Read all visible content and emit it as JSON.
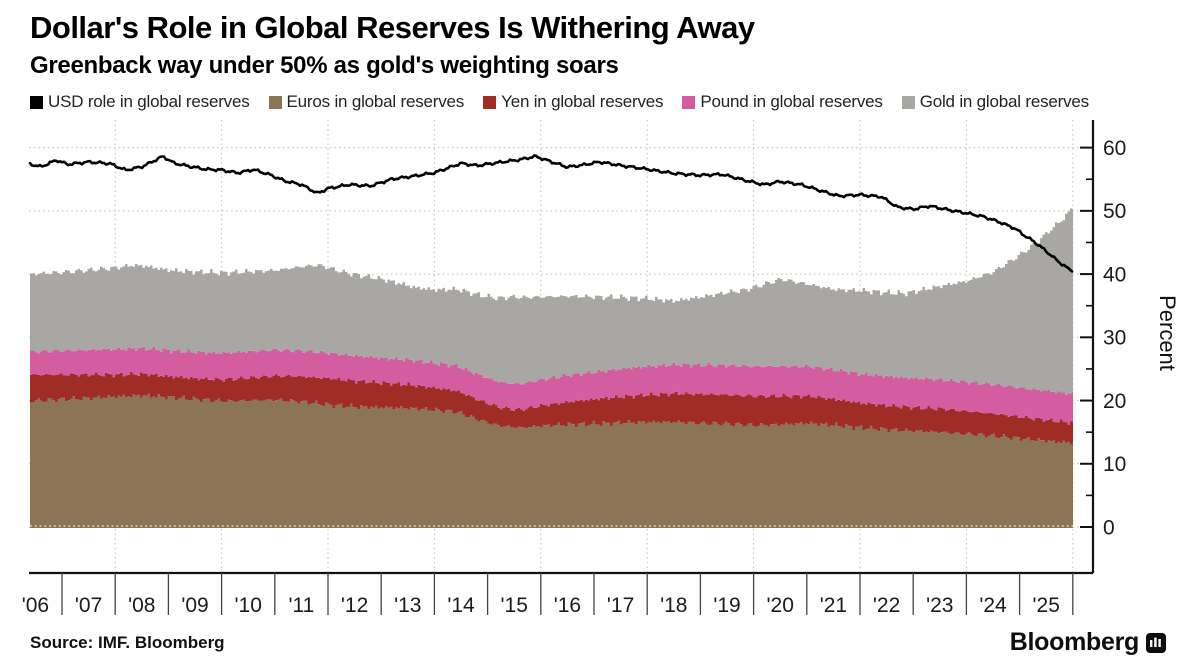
{
  "header": {
    "title": "Dollar's Role in Global Reserves Is Withering Away",
    "subtitle": "Greenback way under 50% as gold's weighting soars"
  },
  "legend": [
    {
      "key": "usd",
      "label": "USD role in global reserves"
    },
    {
      "key": "euros",
      "label": "Euros in global reserves"
    },
    {
      "key": "yen",
      "label": "Yen in global reserves"
    },
    {
      "key": "pound",
      "label": "Pound in global reserves"
    },
    {
      "key": "gold",
      "label": "Gold in global reserves"
    }
  ],
  "colors": {
    "usd": "#000000",
    "euros": "#8b7556",
    "yen": "#9f2d26",
    "pound": "#d45ca0",
    "gold": "#a8a7a3",
    "grid": "#bfbfbf",
    "axis": "#111111",
    "tick_text": "#1b1b1b"
  },
  "footer": {
    "source": "Source: IMF. Bloomberg",
    "brand": "Bloomberg"
  },
  "chart_data": {
    "type": "area",
    "title": "Dollar's Role in Global Reserves Is Withering Away",
    "subtitle": "Greenback way under 50% as gold's weighting soars",
    "ylabel": "Percent",
    "xlabel": "",
    "grid": "dotted",
    "legend_position": "top",
    "y_range": [
      0,
      62
    ],
    "ytick_values": [
      0,
      10,
      20,
      30,
      40,
      50,
      60
    ],
    "ytick_labels": [
      "0",
      "10",
      "20",
      "30",
      "40",
      "50",
      "60"
    ],
    "yminor_values": [
      5,
      15,
      25,
      35,
      45,
      55
    ],
    "x_range": [
      2006.4,
      2026.0
    ],
    "xtick_labels": [
      "'06",
      "'07",
      "'08",
      "'09",
      "'10",
      "'11",
      "'12",
      "'13",
      "'14",
      "'15",
      "'16",
      "'17",
      "'18",
      "'19",
      "'20",
      "'21",
      "'22",
      "'23",
      "'24",
      "'25"
    ],
    "stack_order": [
      "euros",
      "yen",
      "pound",
      "gold"
    ],
    "series": [
      {
        "key": "euros",
        "name": "Euros in global reserves",
        "type": "area",
        "points": [
          [
            2006.4,
            19.9
          ],
          [
            2007.0,
            20.2
          ],
          [
            2007.5,
            20.4
          ],
          [
            2008.0,
            20.6
          ],
          [
            2008.5,
            20.8
          ],
          [
            2009.0,
            20.5
          ],
          [
            2009.5,
            20.2
          ],
          [
            2010.0,
            19.9
          ],
          [
            2010.5,
            20.0
          ],
          [
            2011.0,
            20.1
          ],
          [
            2011.5,
            19.8
          ],
          [
            2012.0,
            19.3
          ],
          [
            2012.5,
            19.0
          ],
          [
            2013.0,
            18.9
          ],
          [
            2013.5,
            18.8
          ],
          [
            2014.0,
            18.5
          ],
          [
            2014.4,
            18.2
          ],
          [
            2014.8,
            17.0
          ],
          [
            2015.2,
            16.0
          ],
          [
            2015.6,
            15.7
          ],
          [
            2016.0,
            16.0
          ],
          [
            2016.5,
            16.2
          ],
          [
            2017.0,
            16.3
          ],
          [
            2017.5,
            16.5
          ],
          [
            2018.0,
            16.6
          ],
          [
            2018.5,
            16.6
          ],
          [
            2019.0,
            16.4
          ],
          [
            2019.5,
            16.3
          ],
          [
            2020.0,
            16.1
          ],
          [
            2020.5,
            16.2
          ],
          [
            2021.0,
            16.4
          ],
          [
            2021.5,
            16.1
          ],
          [
            2022.0,
            15.7
          ],
          [
            2022.5,
            15.4
          ],
          [
            2023.0,
            15.2
          ],
          [
            2023.5,
            15.0
          ],
          [
            2024.0,
            14.7
          ],
          [
            2024.5,
            14.4
          ],
          [
            2025.0,
            14.0
          ],
          [
            2025.5,
            13.6
          ],
          [
            2025.95,
            13.3
          ]
        ]
      },
      {
        "key": "yen",
        "name": "Yen in global reserves",
        "type": "area",
        "points": [
          [
            2006.4,
            4.2
          ],
          [
            2007.0,
            3.9
          ],
          [
            2007.5,
            3.7
          ],
          [
            2008.0,
            3.5
          ],
          [
            2008.5,
            3.4
          ],
          [
            2009.0,
            3.3
          ],
          [
            2009.5,
            3.3
          ],
          [
            2010.0,
            3.4
          ],
          [
            2010.5,
            3.6
          ],
          [
            2011.0,
            3.8
          ],
          [
            2011.5,
            4.0
          ],
          [
            2012.0,
            4.2
          ],
          [
            2012.5,
            4.1
          ],
          [
            2013.0,
            3.9
          ],
          [
            2013.5,
            3.7
          ],
          [
            2014.0,
            3.5
          ],
          [
            2014.5,
            3.3
          ],
          [
            2015.0,
            3.0
          ],
          [
            2015.5,
            2.8
          ],
          [
            2016.0,
            3.2
          ],
          [
            2016.5,
            3.6
          ],
          [
            2017.0,
            3.9
          ],
          [
            2017.5,
            4.1
          ],
          [
            2018.0,
            4.3
          ],
          [
            2018.5,
            4.5
          ],
          [
            2019.0,
            4.6
          ],
          [
            2019.5,
            4.6
          ],
          [
            2020.0,
            4.6
          ],
          [
            2020.5,
            4.5
          ],
          [
            2021.0,
            4.3
          ],
          [
            2021.5,
            4.1
          ],
          [
            2022.0,
            3.9
          ],
          [
            2022.5,
            3.8
          ],
          [
            2023.0,
            3.7
          ],
          [
            2023.5,
            3.7
          ],
          [
            2024.0,
            3.6
          ],
          [
            2024.5,
            3.5
          ],
          [
            2025.0,
            3.4
          ],
          [
            2025.5,
            3.3
          ],
          [
            2025.95,
            3.2
          ]
        ]
      },
      {
        "key": "pound",
        "name": "Pound in global reserves",
        "type": "area",
        "points": [
          [
            2006.4,
            3.6
          ],
          [
            2007.0,
            3.8
          ],
          [
            2008.0,
            4.0
          ],
          [
            2009.0,
            4.1
          ],
          [
            2010.0,
            4.2
          ],
          [
            2011.0,
            4.1
          ],
          [
            2012.0,
            4.0
          ],
          [
            2013.0,
            3.9
          ],
          [
            2014.0,
            3.9
          ],
          [
            2015.0,
            4.0
          ],
          [
            2016.0,
            4.1
          ],
          [
            2017.0,
            4.3
          ],
          [
            2018.0,
            4.5
          ],
          [
            2019.0,
            4.6
          ],
          [
            2020.0,
            4.7
          ],
          [
            2021.0,
            4.7
          ],
          [
            2022.0,
            4.6
          ],
          [
            2023.0,
            4.6
          ],
          [
            2024.0,
            4.6
          ],
          [
            2025.0,
            4.6
          ],
          [
            2025.95,
            4.6
          ]
        ]
      },
      {
        "key": "gold",
        "name": "Gold in global reserves",
        "type": "area",
        "points": [
          [
            2006.4,
            12.3
          ],
          [
            2007.0,
            12.4
          ],
          [
            2008.0,
            12.9
          ],
          [
            2008.3,
            13.2
          ],
          [
            2009.0,
            12.7
          ],
          [
            2010.0,
            12.7
          ],
          [
            2011.0,
            12.6
          ],
          [
            2011.8,
            13.8
          ],
          [
            2012.3,
            13.0
          ],
          [
            2013.0,
            12.5
          ],
          [
            2013.6,
            11.6
          ],
          [
            2014.0,
            11.6
          ],
          [
            2015.0,
            12.9
          ],
          [
            2015.5,
            13.8
          ],
          [
            2016.0,
            13.1
          ],
          [
            2017.0,
            11.9
          ],
          [
            2018.0,
            10.7
          ],
          [
            2018.5,
            10.1
          ],
          [
            2019.0,
            10.8
          ],
          [
            2019.8,
            12.0
          ],
          [
            2020.5,
            13.8
          ],
          [
            2021.0,
            13.0
          ],
          [
            2021.5,
            12.7
          ],
          [
            2022.0,
            13.2
          ],
          [
            2022.8,
            13.3
          ],
          [
            2023.5,
            14.8
          ],
          [
            2024.0,
            16.0
          ],
          [
            2024.5,
            17.9
          ],
          [
            2025.0,
            21.1
          ],
          [
            2025.3,
            23.3
          ],
          [
            2025.6,
            25.9
          ],
          [
            2025.8,
            27.5
          ],
          [
            2025.95,
            29.2
          ]
        ]
      },
      {
        "key": "usd",
        "name": "USD role in global reserves",
        "type": "line",
        "points": [
          [
            2006.4,
            57.4
          ],
          [
            2006.6,
            57.0
          ],
          [
            2006.9,
            58.1
          ],
          [
            2007.1,
            57.4
          ],
          [
            2007.5,
            57.7
          ],
          [
            2007.9,
            57.4
          ],
          [
            2008.2,
            56.4
          ],
          [
            2008.5,
            57.0
          ],
          [
            2008.9,
            58.7
          ],
          [
            2009.1,
            57.6
          ],
          [
            2009.4,
            57.0
          ],
          [
            2009.7,
            56.5
          ],
          [
            2010.0,
            56.4
          ],
          [
            2010.3,
            56.0
          ],
          [
            2010.6,
            56.6
          ],
          [
            2010.9,
            55.8
          ],
          [
            2011.2,
            54.7
          ],
          [
            2011.5,
            54.1
          ],
          [
            2011.8,
            52.7
          ],
          [
            2012.0,
            53.5
          ],
          [
            2012.4,
            54.2
          ],
          [
            2012.8,
            54.0
          ],
          [
            2013.2,
            55.0
          ],
          [
            2013.6,
            55.4
          ],
          [
            2014.0,
            56.0
          ],
          [
            2014.5,
            57.6
          ],
          [
            2014.8,
            57.2
          ],
          [
            2015.2,
            57.6
          ],
          [
            2015.6,
            58.0
          ],
          [
            2015.9,
            58.6
          ],
          [
            2016.2,
            57.8
          ],
          [
            2016.5,
            57.0
          ],
          [
            2016.8,
            57.3
          ],
          [
            2017.1,
            57.7
          ],
          [
            2017.5,
            57.1
          ],
          [
            2018.0,
            56.6
          ],
          [
            2018.5,
            56.0
          ],
          [
            2019.0,
            55.6
          ],
          [
            2019.4,
            55.7
          ],
          [
            2019.8,
            54.9
          ],
          [
            2020.2,
            54.2
          ],
          [
            2020.5,
            54.7
          ],
          [
            2020.9,
            54.1
          ],
          [
            2021.3,
            53.0
          ],
          [
            2021.6,
            52.3
          ],
          [
            2022.0,
            52.6
          ],
          [
            2022.4,
            52.3
          ],
          [
            2022.7,
            50.6
          ],
          [
            2023.0,
            50.2
          ],
          [
            2023.3,
            50.7
          ],
          [
            2023.7,
            50.1
          ],
          [
            2024.0,
            49.7
          ],
          [
            2024.3,
            49.2
          ],
          [
            2024.6,
            48.3
          ],
          [
            2024.9,
            47.2
          ],
          [
            2025.1,
            46.0
          ],
          [
            2025.3,
            44.9
          ],
          [
            2025.5,
            43.6
          ],
          [
            2025.7,
            42.2
          ],
          [
            2025.85,
            41.3
          ],
          [
            2025.95,
            40.7
          ]
        ]
      }
    ]
  }
}
